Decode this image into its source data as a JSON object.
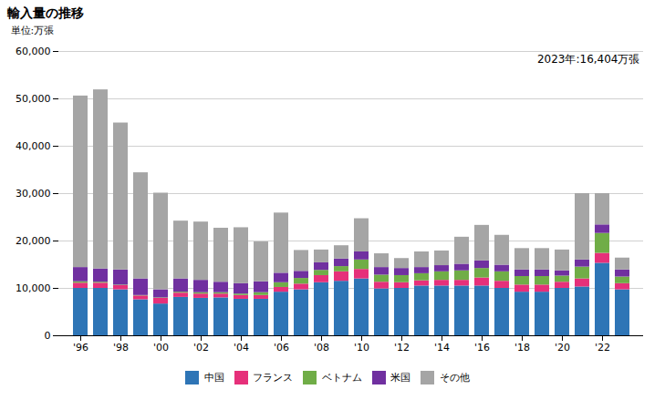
{
  "chart_data": {
    "type": "bar",
    "stacked": true,
    "title": "輸入量の推移",
    "ylabel": "単位:万張",
    "annotation": "2023年:16,404万張",
    "categories": [
      "'96",
      null,
      "'98",
      null,
      "'00",
      null,
      "'02",
      null,
      "'04",
      null,
      "'06",
      null,
      "'08",
      null,
      "'10",
      null,
      "'12",
      null,
      "'14",
      null,
      "'16",
      null,
      "'18",
      null,
      "'20",
      null,
      "'22",
      null
    ],
    "series": [
      {
        "name": "中国",
        "color": "#2E75B6",
        "values": [
          10000,
          10000,
          9700,
          7600,
          6700,
          8100,
          7900,
          8000,
          7700,
          7700,
          9200,
          9700,
          11200,
          11500,
          12000,
          9900,
          10000,
          10500,
          10500,
          10500,
          10500,
          10000,
          9200,
          9200,
          10000,
          10300,
          15300,
          9700
        ]
      },
      {
        "name": "フランス",
        "color": "#E6307A",
        "values": [
          1100,
          1100,
          900,
          800,
          1200,
          900,
          900,
          800,
          800,
          800,
          1000,
          1200,
          1500,
          2000,
          2000,
          1400,
          1200,
          1100,
          1200,
          1200,
          1700,
          1500,
          1500,
          1500,
          1300,
          1700,
          2100,
          1300
        ]
      },
      {
        "name": "ベトナム",
        "color": "#70AD47",
        "values": [
          300,
          200,
          100,
          100,
          100,
          200,
          300,
          300,
          300,
          600,
          1000,
          1200,
          1100,
          1100,
          2000,
          1500,
          1500,
          1500,
          1800,
          2000,
          2000,
          2000,
          1800,
          1800,
          1300,
          2500,
          4200,
          1400
        ]
      },
      {
        "name": "米国",
        "color": "#7030A0",
        "values": [
          3000,
          2800,
          3200,
          3500,
          1700,
          2800,
          2600,
          2200,
          2200,
          2300,
          2000,
          1500,
          1600,
          1600,
          1700,
          1600,
          1500,
          1300,
          1300,
          1400,
          1600,
          1400,
          1400,
          1400,
          1100,
          1500,
          1800,
          1500
        ]
      },
      {
        "name": "その他",
        "color": "#A5A5A5",
        "values": [
          36200,
          37800,
          31000,
          22400,
          20400,
          12200,
          12300,
          11400,
          11800,
          8400,
          12700,
          4400,
          2700,
          2800,
          7000,
          2900,
          2100,
          3300,
          3100,
          5700,
          7500,
          6300,
          4500,
          4500,
          4400,
          14000,
          6600,
          2500
        ]
      }
    ],
    "ylim": [
      0,
      60000
    ],
    "yticks": [
      0,
      {
        "value": 10000,
        "label": "10,000"
      },
      {
        "value": 20000,
        "label": "20,000"
      },
      {
        "value": 30000,
        "label": "30,000"
      },
      {
        "value": 40000,
        "label": "40,000"
      },
      {
        "value": 50000,
        "label": "50,000"
      },
      {
        "value": 60000,
        "label": "60,000"
      }
    ],
    "grid": true,
    "legend": "bottom"
  }
}
